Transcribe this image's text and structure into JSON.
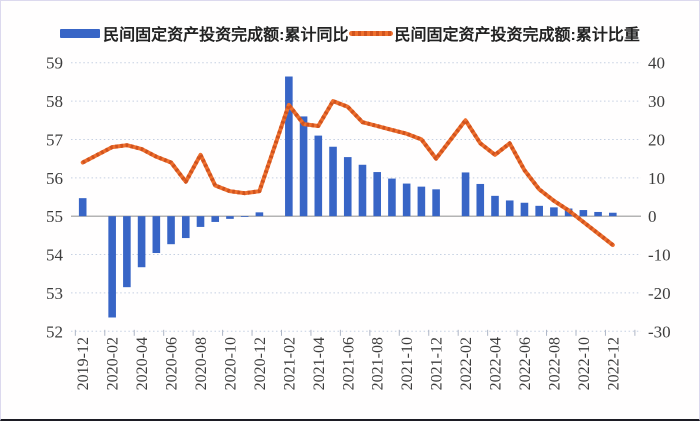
{
  "chart_data": {
    "type": "bar",
    "subtype": "dual-axis bar + line combo",
    "title": "",
    "x": [
      "2019-12",
      "2020-02",
      "2020-03",
      "2020-04",
      "2020-05",
      "2020-06",
      "2020-07",
      "2020-08",
      "2020-09",
      "2020-10",
      "2020-11",
      "2020-12",
      "2021-02",
      "2021-03",
      "2021-04",
      "2021-05",
      "2021-06",
      "2021-07",
      "2021-08",
      "2021-09",
      "2021-10",
      "2021-11",
      "2021-12",
      "2022-02",
      "2022-03",
      "2022-04",
      "2022-05",
      "2022-06",
      "2022-07",
      "2022-08",
      "2022-09",
      "2022-10",
      "2022-11",
      "2022-12"
    ],
    "x_tick_labels": [
      "2019-12",
      "2020-02",
      "2020-04",
      "2020-06",
      "2020-08",
      "2020-10",
      "2020-12",
      "2021-02",
      "2021-04",
      "2021-06",
      "2021-08",
      "2021-10",
      "2021-12",
      "2022-02",
      "2022-04",
      "2022-06",
      "2022-08",
      "2022-10",
      "2022-12"
    ],
    "series": [
      {
        "name": "民间固定资产投资完成额:累计同比",
        "type": "bar",
        "axis": "right",
        "unit": "%",
        "color": "#3865c6",
        "values": [
          4.7,
          -26.4,
          -18.5,
          -13.3,
          -9.6,
          -7.3,
          -5.7,
          -2.8,
          -1.5,
          -0.7,
          -0.2,
          1.0,
          36.4,
          26.0,
          21.0,
          18.1,
          15.4,
          13.4,
          11.5,
          9.8,
          8.5,
          7.7,
          7.0,
          11.4,
          8.4,
          5.3,
          4.1,
          3.5,
          2.7,
          2.3,
          2.0,
          1.6,
          1.1,
          0.9
        ]
      },
      {
        "name": "民间固定资产投资完成额:累计比重",
        "type": "line",
        "axis": "left",
        "unit": "%",
        "color": "#ee6f2d",
        "dash_color": "#d1531e",
        "values": [
          56.4,
          56.8,
          56.85,
          56.75,
          56.55,
          56.4,
          55.9,
          56.6,
          55.8,
          55.65,
          55.6,
          55.65,
          57.9,
          57.4,
          57.35,
          58.0,
          57.85,
          57.45,
          57.35,
          57.25,
          57.15,
          57.0,
          56.5,
          57.5,
          56.9,
          56.6,
          56.9,
          56.2,
          55.7,
          55.4,
          55.15,
          54.85,
          54.55,
          54.25
        ]
      }
    ],
    "left_axis": {
      "min": 52,
      "max": 59,
      "step": 1,
      "ticks": [
        "52",
        "53",
        "54",
        "55",
        "56",
        "57",
        "58",
        "59"
      ]
    },
    "right_axis": {
      "min": -30,
      "max": 40,
      "step": 10,
      "ticks": [
        "-30",
        "-20",
        "-10",
        "0",
        "10",
        "20",
        "30",
        "40"
      ]
    },
    "grid": true,
    "gridline_style": "dotted",
    "zero_baseline_left_value": 55,
    "legend_position": "top-center",
    "colors": {
      "grid": "#c5d0e2",
      "zero_line": "#9b9b9b",
      "axis_text": "#3d3d3d",
      "tick_mark": "#aeb6c6",
      "background": "#fffefe",
      "frame": "#dcd9ee",
      "frame_bottom": "#1c1c24"
    }
  }
}
